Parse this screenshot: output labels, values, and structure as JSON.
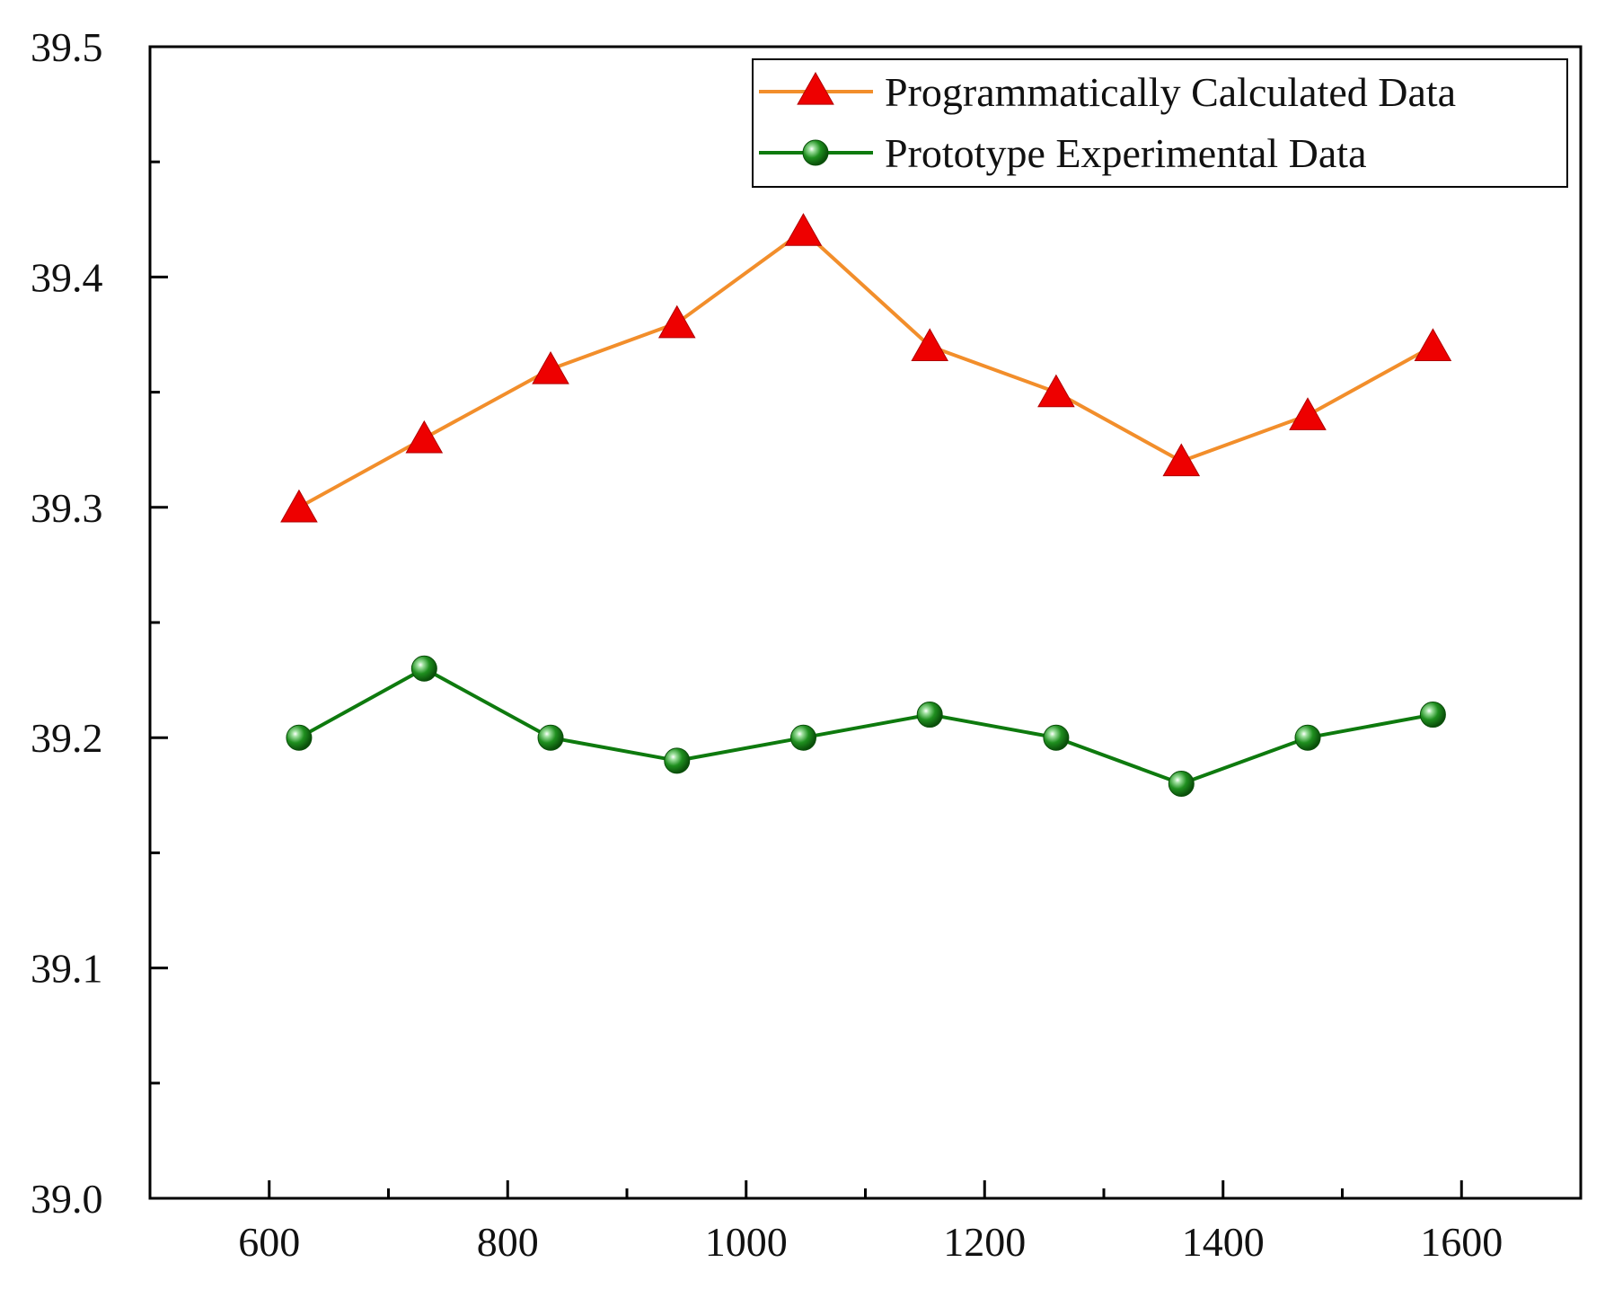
{
  "chart_data": {
    "type": "line",
    "title": "",
    "xlabel": "",
    "ylabel": "",
    "xlim": [
      500,
      1700
    ],
    "ylim": [
      39.0,
      39.5
    ],
    "x_ticks": [
      600,
      800,
      1000,
      1200,
      1400,
      1600
    ],
    "x_tick_labels": [
      "600",
      "800",
      "1000",
      "1200",
      "1400",
      "1600"
    ],
    "y_ticks": [
      39.0,
      39.1,
      39.2,
      39.3,
      39.4,
      39.5
    ],
    "y_tick_labels": [
      "39.0",
      "39.1",
      "39.2",
      "39.3",
      "39.4",
      "39.5"
    ],
    "grid": false,
    "legend_position": "top-right",
    "x": [
      625,
      730,
      836,
      942,
      1048,
      1154,
      1260,
      1365,
      1471,
      1576
    ],
    "series": [
      {
        "name": "Programmatically Calculated Data",
        "line_color": "#F28E2B",
        "marker": "triangle",
        "marker_color": "#EE0000",
        "values": [
          39.3,
          39.33,
          39.36,
          39.38,
          39.42,
          39.37,
          39.35,
          39.32,
          39.34,
          39.37
        ]
      },
      {
        "name": "Prototype Experimental Data",
        "line_color": "#0E7A0E",
        "marker": "circle",
        "marker_color": "#1C8C1C",
        "values": [
          39.2,
          39.23,
          39.2,
          39.19,
          39.2,
          39.21,
          39.2,
          39.18,
          39.2,
          39.21
        ]
      }
    ]
  }
}
